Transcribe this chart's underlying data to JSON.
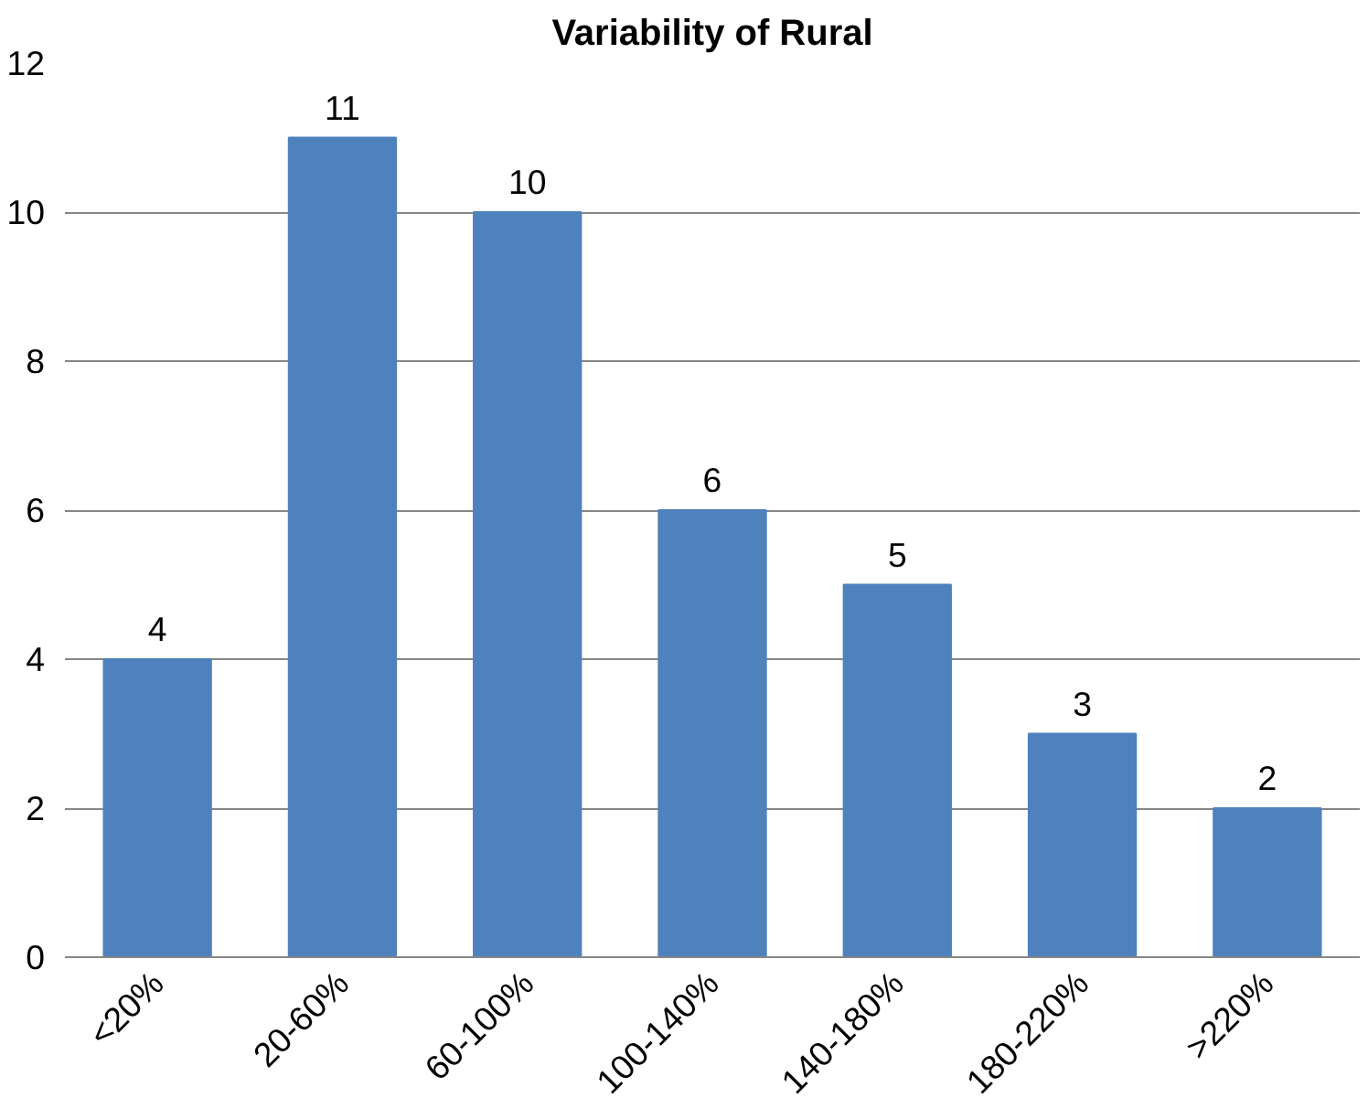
{
  "chart_data": {
    "type": "bar",
    "title": "Variability of Rural",
    "categories": [
      "<20%",
      "20-60%",
      "60-100%",
      "100-140%",
      "140-180%",
      "180-220%",
      ">220%"
    ],
    "values": [
      4,
      11,
      10,
      6,
      5,
      3,
      2
    ],
    "color": "#4f81bd",
    "ylim": [
      0,
      12
    ],
    "yticks": [
      0,
      2,
      4,
      6,
      8,
      10,
      12
    ],
    "grid": "y",
    "data_labels": true
  }
}
